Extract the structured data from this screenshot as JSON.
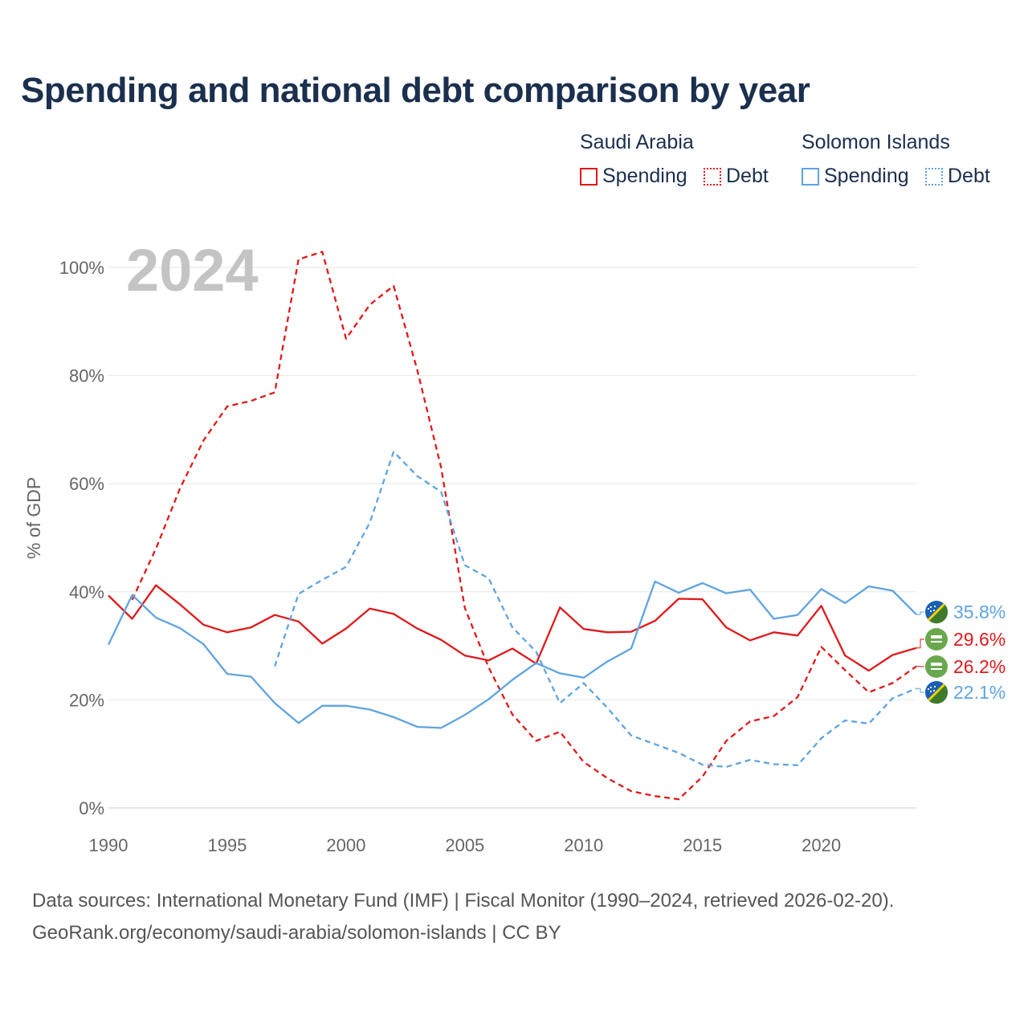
{
  "title": "Spending and national debt comparison by year",
  "legend": {
    "groups": [
      {
        "name": "Saudi Arabia",
        "items": [
          "Spending",
          "Debt"
        ]
      },
      {
        "name": "Solomon Islands",
        "items": [
          "Spending",
          "Debt"
        ]
      }
    ]
  },
  "colors": {
    "saudi": "#e0191b",
    "solomon": "#5fa4e0",
    "grid": "#e6e6e6",
    "year_watermark": "#c4c4c4"
  },
  "footer": {
    "line1": "Data sources: International Monetary Fund (IMF) | Fiscal Monitor (1990–2024, retrieved 2026-02-20).",
    "line2": "GeoRank.org/economy/saudi-arabia/solomon-islands | CC BY"
  },
  "chart_data": {
    "type": "line",
    "year_label": "2024",
    "ylabel": "% of GDP",
    "xlim": [
      1990,
      2024
    ],
    "ylim": [
      0,
      100
    ],
    "x_ticks": [
      1990,
      1995,
      2000,
      2005,
      2010,
      2015,
      2020
    ],
    "y_ticks": [
      0,
      20,
      40,
      60,
      80,
      100
    ],
    "y_tick_labels": [
      "0%",
      "20%",
      "40%",
      "60%",
      "80%",
      "100%"
    ],
    "series": [
      {
        "name": "Saudi Arabia Spending",
        "country": "saudi",
        "dash": false,
        "start_year": 1990,
        "values": [
          39.3,
          35.0,
          41.2,
          37.7,
          33.9,
          32.5,
          33.4,
          35.7,
          34.5,
          30.4,
          33.2,
          36.9,
          35.9,
          33.2,
          31.1,
          28.2,
          27.3,
          29.5,
          26.7,
          37.1,
          33.1,
          32.5,
          32.6,
          34.6,
          38.7,
          38.6,
          33.4,
          31.0,
          32.5,
          31.9,
          37.4,
          28.2,
          25.4,
          28.3,
          29.6
        ],
        "end_label": "29.6%"
      },
      {
        "name": "Saudi Arabia Debt",
        "country": "saudi",
        "dash": true,
        "start_year": 1991,
        "values": [
          38.5,
          48.0,
          59.0,
          68.0,
          74.3,
          75.3,
          76.9,
          101.5,
          102.9,
          86.8,
          93.1,
          96.6,
          81.0,
          63.0,
          37.0,
          26.0,
          17.3,
          12.4,
          14.1,
          8.5,
          5.5,
          3.1,
          2.2,
          1.6,
          5.8,
          12.4,
          16.0,
          17.0,
          20.5,
          29.8,
          25.5,
          21.4,
          23.1,
          26.2
        ],
        "end_label": "26.2%"
      },
      {
        "name": "Solomon Islands Spending",
        "country": "solomon",
        "dash": false,
        "start_year": 1990,
        "values": [
          30.2,
          39.4,
          35.2,
          33.3,
          30.3,
          24.8,
          24.3,
          19.4,
          15.7,
          18.9,
          18.9,
          18.2,
          16.8,
          15.0,
          14.8,
          17.2,
          20.1,
          23.7,
          26.8,
          24.9,
          24.1,
          27.1,
          29.5,
          41.9,
          39.8,
          41.6,
          39.7,
          40.4,
          35.0,
          35.7,
          40.5,
          37.9,
          41.0,
          40.2,
          35.8
        ],
        "end_label": "35.8%"
      },
      {
        "name": "Solomon Islands Debt",
        "country": "solomon",
        "dash": true,
        "start_year": 1997,
        "values": [
          26.2,
          39.6,
          42.2,
          44.6,
          52.8,
          65.9,
          61.4,
          58.5,
          44.9,
          42.5,
          33.4,
          28.9,
          19.4,
          23.1,
          18.5,
          13.4,
          11.8,
          10.2,
          8.0,
          7.6,
          8.9,
          8.1,
          7.9,
          12.9,
          16.2,
          15.6,
          20.3,
          22.1
        ],
        "end_label": "22.1%"
      }
    ]
  }
}
